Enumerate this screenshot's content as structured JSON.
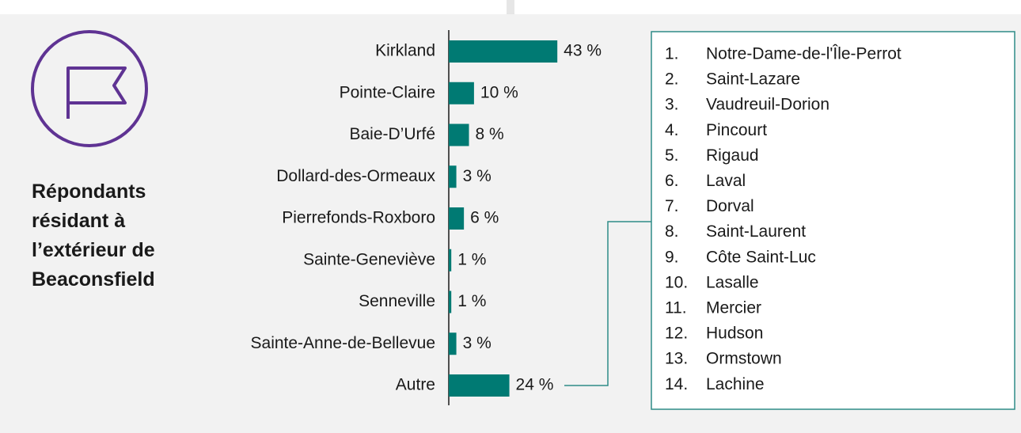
{
  "chart_data": {
    "type": "barh",
    "title": "Répondants résidant à l’extérieur de Beaconsfield",
    "categories": [
      "Kirkland",
      "Pointe-Claire",
      "Baie-D’Urfé",
      "Dollard-des-Ormeaux",
      "Pierrefonds-Roxboro",
      "Sainte-Geneviève",
      "Senneville",
      "Sainte-Anne-de-Bellevue",
      "Autre"
    ],
    "values": [
      43,
      10,
      8,
      3,
      6,
      1,
      1,
      3,
      24
    ],
    "value_labels": [
      "43 %",
      "10 %",
      "8 %",
      "3 %",
      "6 %",
      "1 %",
      "1 %",
      "3 %",
      "24 %"
    ],
    "color": "#007a73",
    "xlim": [
      0,
      100
    ]
  },
  "other_list": [
    {
      "number": "1.",
      "name": "Notre-Dame-de-l'Île-Perrot"
    },
    {
      "number": "2.",
      "name": "Saint-Lazare"
    },
    {
      "number": "3.",
      "name": "Vaudreuil-Dorion"
    },
    {
      "number": "4.",
      "name": "Pincourt"
    },
    {
      "number": "5.",
      "name": "Rigaud"
    },
    {
      "number": "6.",
      "name": "Laval"
    },
    {
      "number": "7.",
      "name": "Dorval"
    },
    {
      "number": "8.",
      "name": "Saint-Laurent"
    },
    {
      "number": "9.",
      "name": "Côte Saint-Luc"
    },
    {
      "number": "10.",
      "name": "Lasalle"
    },
    {
      "number": "11.",
      "name": "Mercier"
    },
    {
      "number": "12.",
      "name": "Hudson"
    },
    {
      "number": "13.",
      "name": "Ormstown"
    },
    {
      "number": "14.",
      "name": "Lachine"
    }
  ]
}
